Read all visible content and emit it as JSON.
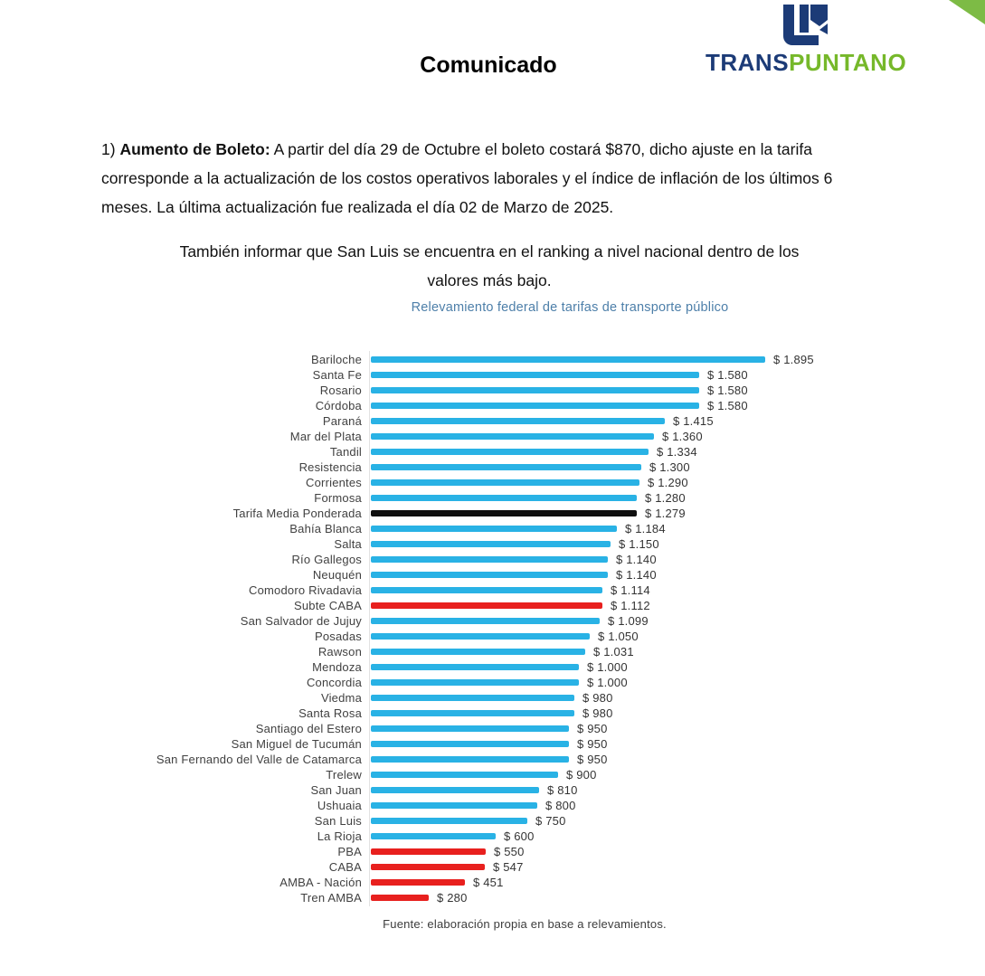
{
  "page": {
    "title": "Comunicado"
  },
  "logo": {
    "brand_trans": "TRANS",
    "brand_puntano": "PUNTANO"
  },
  "body": {
    "para1_prefix": "1) ",
    "para1_bold": "Aumento de Boleto:",
    "para1_rest": " A partir del día 29 de Octubre el boleto costará $870, dicho ajuste en la tarifa corresponde a la actualización de los costos operativos laborales y el índice de inflación de los últimos 6 meses. La última actualización fue realizada el día 02 de Marzo de 2025.",
    "para2_line1": "También informar que San Luis se encuentra en el ranking a nivel nacional dentro de los",
    "para2_line2": "valores más bajo."
  },
  "chart_data": {
    "type": "bar",
    "orientation": "horizontal",
    "title": "Relevamiento federal de tarifas de transporte público",
    "source": "Fuente: elaboración propia en base a relevamientos.",
    "unit": "ARS",
    "xlim": [
      0,
      2000
    ],
    "legend": "none",
    "grid": "off",
    "colors": {
      "blue": "#29B2E5",
      "black": "#0F0F0F",
      "red": "#E8201E"
    },
    "rows": [
      {
        "name": "Bariloche",
        "value": 1895,
        "display": "$ 1.895",
        "color": "blue"
      },
      {
        "name": "Santa Fe",
        "value": 1580,
        "display": "$ 1.580",
        "color": "blue"
      },
      {
        "name": "Rosario",
        "value": 1580,
        "display": "$ 1.580",
        "color": "blue"
      },
      {
        "name": "Córdoba",
        "value": 1580,
        "display": "$ 1.580",
        "color": "blue"
      },
      {
        "name": "Paraná",
        "value": 1415,
        "display": "$ 1.415",
        "color": "blue"
      },
      {
        "name": "Mar del Plata",
        "value": 1360,
        "display": "$ 1.360",
        "color": "blue"
      },
      {
        "name": "Tandil",
        "value": 1334,
        "display": "$ 1.334",
        "color": "blue"
      },
      {
        "name": "Resistencia",
        "value": 1300,
        "display": "$ 1.300",
        "color": "blue"
      },
      {
        "name": "Corrientes",
        "value": 1290,
        "display": "$ 1.290",
        "color": "blue"
      },
      {
        "name": "Formosa",
        "value": 1280,
        "display": "$ 1.280",
        "color": "blue"
      },
      {
        "name": "Tarifa Media Ponderada",
        "value": 1279,
        "display": "$ 1.279",
        "color": "black"
      },
      {
        "name": "Bahía Blanca",
        "value": 1184,
        "display": "$ 1.184",
        "color": "blue"
      },
      {
        "name": "Salta",
        "value": 1150,
        "display": "$ 1.150",
        "color": "blue"
      },
      {
        "name": "Río Gallegos",
        "value": 1140,
        "display": "$ 1.140",
        "color": "blue"
      },
      {
        "name": "Neuquén",
        "value": 1140,
        "display": "$ 1.140",
        "color": "blue"
      },
      {
        "name": "Comodoro Rivadavia",
        "value": 1114,
        "display": "$ 1.114",
        "color": "blue"
      },
      {
        "name": "Subte CABA",
        "value": 1112,
        "display": "$ 1.112",
        "color": "red"
      },
      {
        "name": "San Salvador de Jujuy",
        "value": 1099,
        "display": "$ 1.099",
        "color": "blue"
      },
      {
        "name": "Posadas",
        "value": 1050,
        "display": "$ 1.050",
        "color": "blue"
      },
      {
        "name": "Rawson",
        "value": 1031,
        "display": "$ 1.031",
        "color": "blue"
      },
      {
        "name": "Mendoza",
        "value": 1000,
        "display": "$ 1.000",
        "color": "blue"
      },
      {
        "name": "Concordia",
        "value": 1000,
        "display": "$ 1.000",
        "color": "blue"
      },
      {
        "name": "Viedma",
        "value": 980,
        "display": "$ 980",
        "color": "blue"
      },
      {
        "name": "Santa Rosa",
        "value": 980,
        "display": "$ 980",
        "color": "blue"
      },
      {
        "name": "Santiago del Estero",
        "value": 950,
        "display": "$ 950",
        "color": "blue"
      },
      {
        "name": "San Miguel de Tucumán",
        "value": 950,
        "display": "$ 950",
        "color": "blue"
      },
      {
        "name": "San Fernando del Valle de Catamarca",
        "value": 950,
        "display": "$ 950",
        "color": "blue"
      },
      {
        "name": "Trelew",
        "value": 900,
        "display": "$ 900",
        "color": "blue"
      },
      {
        "name": "San Juan",
        "value": 810,
        "display": "$ 810",
        "color": "blue"
      },
      {
        "name": "Ushuaia",
        "value": 800,
        "display": "$ 800",
        "color": "blue"
      },
      {
        "name": "San Luis",
        "value": 750,
        "display": "$ 750",
        "color": "blue"
      },
      {
        "name": "La Rioja",
        "value": 600,
        "display": "$ 600",
        "color": "blue"
      },
      {
        "name": "PBA",
        "value": 550,
        "display": "$ 550",
        "color": "red"
      },
      {
        "name": "CABA",
        "value": 547,
        "display": "$ 547",
        "color": "red"
      },
      {
        "name": "AMBA - Nación",
        "value": 451,
        "display": "$ 451",
        "color": "red"
      },
      {
        "name": "Tren AMBA",
        "value": 280,
        "display": "$ 280",
        "color": "red"
      }
    ]
  }
}
